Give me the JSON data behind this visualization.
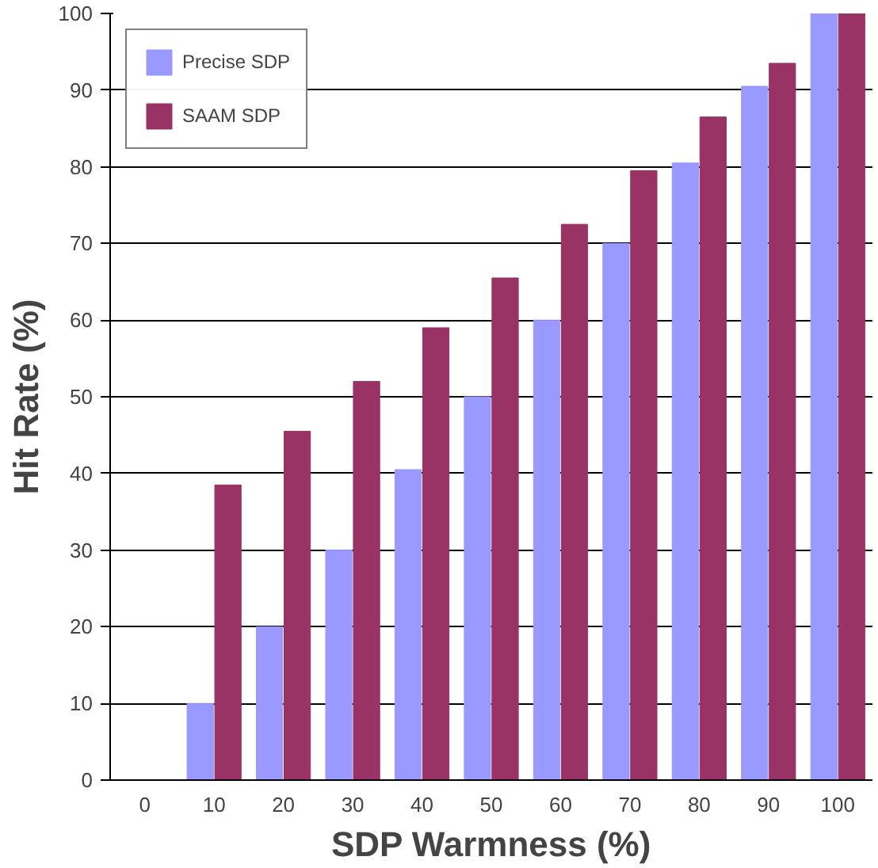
{
  "chart_data": {
    "type": "bar",
    "xlabel": "SDP Warmness (%)",
    "ylabel": "Hit Rate (%)",
    "categories": [
      "0",
      "10",
      "20",
      "30",
      "40",
      "50",
      "60",
      "70",
      "80",
      "90",
      "100"
    ],
    "series": [
      {
        "name": "Precise SDP",
        "color": "#9999ff",
        "values": [
          0,
          10,
          20,
          30,
          40.5,
          50,
          60,
          70,
          80.5,
          90.5,
          100
        ]
      },
      {
        "name": "SAAM SDP",
        "color": "#993366",
        "values": [
          0,
          38.5,
          45.5,
          52,
          59,
          65.5,
          72.5,
          79.5,
          86.5,
          93.5,
          100
        ]
      }
    ],
    "ylim": [
      0,
      100
    ],
    "yticks": [
      0,
      10,
      20,
      30,
      40,
      50,
      60,
      70,
      80,
      90,
      100
    ],
    "grid": "y",
    "legend": "top left"
  }
}
